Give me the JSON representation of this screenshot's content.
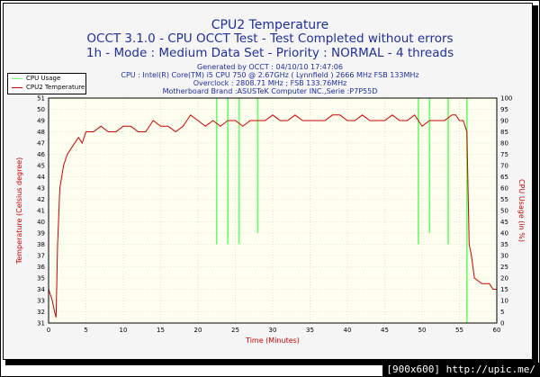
{
  "chart_data": {
    "type": "line",
    "title": "CPU2 Temperature",
    "subtitle_1": "OCCT 3.1.0 - CPU OCCT Test - Test Completed without errors",
    "subtitle_2": "1h - Mode : Medium Data Set - Priority : NORMAL - 4 threads",
    "info_lines": [
      "Generated by OCCT : 04/10/10 17:47:06",
      "CPU : Intel(R) Core(TM) i5 CPU 750 @ 2.67GHz ( Lynnfield ) 2666 MHz FSB 133MHz",
      "Overclock : 2808.71 MHz ; FSB 133.76MHz",
      "Motherboard Brand :ASUSTeK Computer INC.,Serie :P7P55D"
    ],
    "xlabel": "Time (Minutes)",
    "ylabel_left": "Temperature (Celsius degree)",
    "ylabel_right": "CPU Usage (in %)",
    "xlim": [
      0,
      60
    ],
    "ylim_left": [
      31,
      51
    ],
    "ylim_right": [
      0,
      100
    ],
    "x_ticks": [
      "0",
      "5",
      "10",
      "15",
      "20",
      "25",
      "30",
      "35",
      "40",
      "45",
      "50",
      "55",
      "60"
    ],
    "y_ticks_left": [
      "31",
      "32",
      "33",
      "34",
      "35",
      "36",
      "37",
      "38",
      "39",
      "40",
      "41",
      "42",
      "43",
      "44",
      "45",
      "46",
      "47",
      "48",
      "49",
      "50",
      "51"
    ],
    "y_ticks_right": [
      "0",
      "5",
      "10",
      "15",
      "20",
      "25",
      "30",
      "35",
      "40",
      "45",
      "50",
      "55",
      "60",
      "65",
      "70",
      "75",
      "80",
      "85",
      "90",
      "95",
      "100"
    ],
    "legend": [
      {
        "name": "CPU Usage",
        "color": "#66ff66"
      },
      {
        "name": "CPU2 Temperature",
        "color": "#cc0000"
      }
    ],
    "series": [
      {
        "name": "CPU2 Temperature",
        "axis": "left",
        "color": "#cc0000",
        "x": [
          0,
          0.5,
          0.8,
          1.0,
          1.2,
          1.5,
          2.0,
          2.5,
          3.0,
          3.5,
          4.0,
          4.5,
          5.0,
          6.0,
          7.0,
          8.0,
          9.0,
          10.0,
          11.0,
          12.0,
          13.0,
          14.0,
          15.0,
          16.0,
          17.0,
          18.0,
          18.5,
          19.0,
          20.0,
          21.0,
          22.0,
          23.0,
          24.0,
          25.0,
          26.0,
          27.0,
          28.0,
          29.0,
          30.0,
          31.0,
          32.0,
          33.0,
          34.0,
          35.0,
          36.0,
          37.0,
          38.0,
          39.0,
          40.0,
          41.0,
          42.0,
          43.0,
          44.0,
          45.0,
          46.0,
          47.0,
          48.0,
          49.0,
          50.0,
          51.0,
          52.0,
          53.0,
          54.0,
          54.5,
          55.0,
          55.5,
          56.0,
          56.3,
          56.6,
          57.0,
          58.0,
          59.0,
          59.5,
          60.0
        ],
        "y": [
          34,
          33,
          32,
          31.5,
          38,
          43,
          45,
          46,
          46.5,
          47,
          47.5,
          47,
          48,
          48,
          48.5,
          48,
          48,
          48.5,
          48.5,
          48,
          48,
          49,
          48.5,
          48.5,
          48,
          48.5,
          49,
          49.5,
          49,
          48.5,
          49,
          48.5,
          49,
          49,
          48.5,
          49,
          49,
          49,
          49.5,
          49,
          49,
          49.5,
          49,
          49,
          49,
          49,
          49.5,
          49.5,
          49,
          49,
          49.5,
          49,
          49,
          49,
          49.5,
          49,
          49,
          49.5,
          48.5,
          49,
          49,
          49,
          49.5,
          49.5,
          49,
          49,
          48,
          38,
          37,
          35,
          34.5,
          34.5,
          34,
          34
        ]
      },
      {
        "name": "CPU Usage",
        "axis": "right",
        "color": "#66ff66",
        "x": [
          1.0,
          3.0,
          16.0,
          21.0,
          22.5,
          24.0,
          25.5,
          28.0,
          49.5,
          51.0,
          53.5,
          56.0
        ],
        "y": [
          100,
          100,
          100,
          100,
          35,
          35,
          35,
          40,
          35,
          40,
          35,
          0
        ]
      }
    ]
  },
  "watermark": "[900x600] http://upic.me/"
}
